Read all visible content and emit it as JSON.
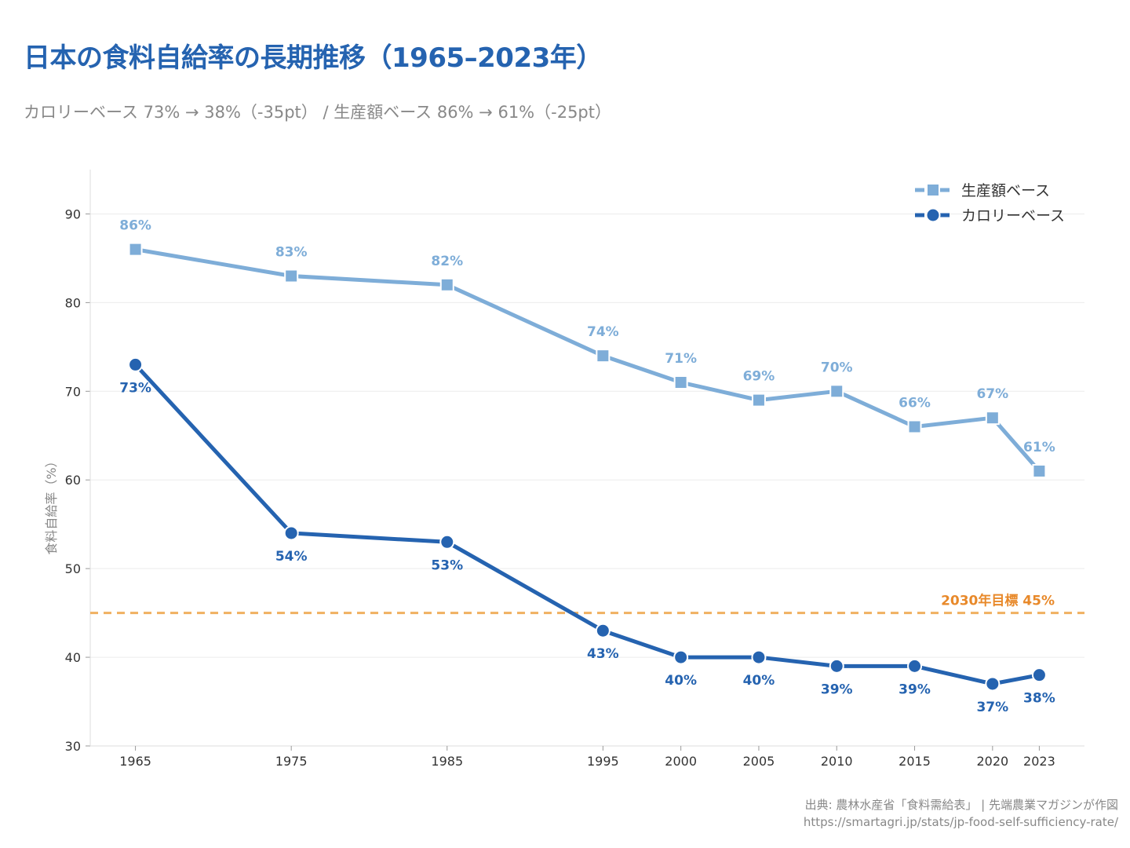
{
  "title": "日本の食料自給率の長期推移（1965–2023年）",
  "subtitle": "カロリーベース 73% → 38%（-35pt） / 生産額ベース 86% → 61%（-25pt）",
  "footer": {
    "source": "出典: 農林水産省「食料需給表」 | 先端農業マガジンが作図",
    "url": "https://smartagri.jp/stats/jp-food-self-sufficiency-rate/"
  },
  "chart_data": {
    "type": "line",
    "title": "日本の食料自給率の長期推移（1965–2023年）",
    "xlabel": "",
    "ylabel": "食料自給率（%）",
    "x": [
      1965,
      1975,
      1985,
      1995,
      2000,
      2005,
      2010,
      2015,
      2020,
      2023
    ],
    "xticks": [
      1965,
      1975,
      1985,
      1995,
      2000,
      2005,
      2010,
      2015,
      2020,
      2023
    ],
    "yticks": [
      30,
      40,
      50,
      60,
      70,
      80,
      90
    ],
    "xlim": [
      1962.1,
      2025.9
    ],
    "ylim": [
      30,
      95
    ],
    "grid": "horizontal",
    "legend_position": "top-right",
    "series": [
      {
        "name": "生産額ベース",
        "values": [
          86,
          83,
          82,
          74,
          71,
          69,
          70,
          66,
          67,
          61
        ],
        "color": "#7eadd8",
        "marker": "square",
        "label_position": "above"
      },
      {
        "name": "カロリーベース",
        "values": [
          73,
          54,
          53,
          43,
          40,
          40,
          39,
          39,
          37,
          38
        ],
        "color": "#2563b0",
        "marker": "circle",
        "label_position": "below"
      }
    ],
    "reference_line": {
      "value": 45,
      "label": "2030年目標 45%",
      "color": "#f0b060",
      "label_color": "#e8892a"
    }
  }
}
